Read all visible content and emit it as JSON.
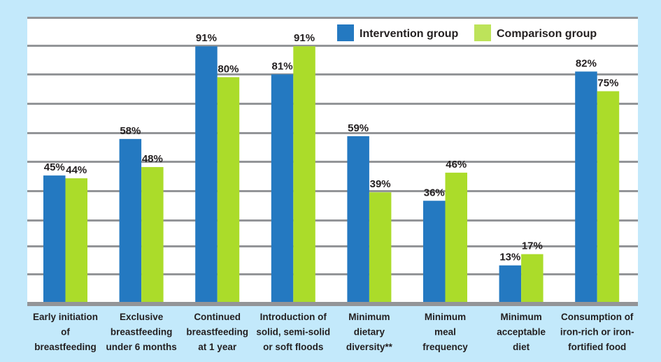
{
  "chart_data": {
    "type": "bar",
    "title": "",
    "xlabel": "",
    "ylabel": "",
    "ylim": [
      0,
      101
    ],
    "grid": true,
    "legend_position": "top-right",
    "categories": [
      [
        "Early initiation",
        "of",
        "breastfeeding"
      ],
      [
        "Exclusive",
        "breastfeeding",
        "under 6 months"
      ],
      [
        "Continued",
        "breastfeeding",
        "at 1 year"
      ],
      [
        "Introduction of",
        "solid, semi-solid",
        "or soft floods"
      ],
      [
        "Minimum",
        "dietary",
        "diversity**"
      ],
      [
        "Minimum",
        "meal",
        "frequency"
      ],
      [
        "Minimum",
        "acceptable",
        "diet"
      ],
      [
        "Consumption of",
        "iron-rich or iron-",
        "fortified food"
      ]
    ],
    "series": [
      {
        "name": "Intervention group",
        "color": "#2479c1",
        "legend_color": "#2479c1",
        "values": [
          45,
          58,
          91,
          81,
          59,
          36,
          13,
          82
        ]
      },
      {
        "name": "Comparison group",
        "color": "#abdc2a",
        "legend_color": "#bde35a",
        "values": [
          44,
          48,
          80,
          91,
          39,
          46,
          17,
          75
        ]
      }
    ],
    "value_suffix": "%"
  }
}
